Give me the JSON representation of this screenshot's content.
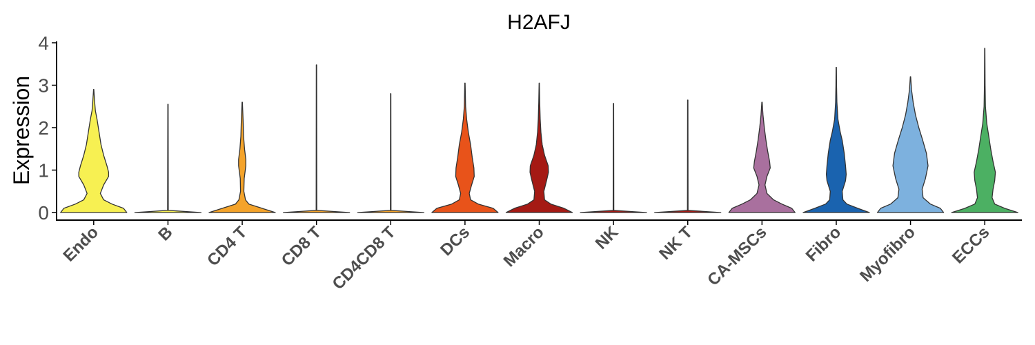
{
  "chart_data": {
    "type": "violin",
    "title": "H2AFJ",
    "xlabel": "",
    "ylabel": "Expression",
    "ylim": [
      -0.2,
      4.1
    ],
    "yticks": [
      0,
      1,
      2,
      3,
      4
    ],
    "grid": false,
    "legend": "none",
    "series": [
      {
        "category": "Endo",
        "color": "#F7F052",
        "max": 2.9,
        "density": [
          [
            0,
            1.0
          ],
          [
            0.1,
            0.9
          ],
          [
            0.2,
            0.55
          ],
          [
            0.3,
            0.3
          ],
          [
            0.45,
            0.2
          ],
          [
            0.65,
            0.3
          ],
          [
            0.85,
            0.45
          ],
          [
            0.95,
            0.45
          ],
          [
            1.1,
            0.4
          ],
          [
            1.35,
            0.3
          ],
          [
            1.6,
            0.22
          ],
          [
            1.9,
            0.16
          ],
          [
            2.2,
            0.1
          ],
          [
            2.4,
            0.05
          ],
          [
            2.6,
            0.03
          ],
          [
            2.9,
            0.005
          ]
        ]
      },
      {
        "category": "B",
        "color": "#F7F052",
        "max": 2.55,
        "density": [
          [
            0,
            1.0
          ],
          [
            0.05,
            0.01
          ],
          [
            2.55,
            0.005
          ]
        ]
      },
      {
        "category": "CD4 T",
        "color": "#F4A32A",
        "max": 2.6,
        "density": [
          [
            0,
            1.0
          ],
          [
            0.1,
            0.6
          ],
          [
            0.2,
            0.2
          ],
          [
            0.3,
            0.1
          ],
          [
            0.5,
            0.05
          ],
          [
            0.8,
            0.06
          ],
          [
            1.1,
            0.11
          ],
          [
            1.25,
            0.11
          ],
          [
            1.5,
            0.07
          ],
          [
            1.8,
            0.04
          ],
          [
            2.1,
            0.03
          ],
          [
            2.6,
            0.005
          ]
        ]
      },
      {
        "category": "CD8 T",
        "color": "#F4A32A",
        "max": 3.48,
        "density": [
          [
            0,
            1.0
          ],
          [
            0.05,
            0.01
          ],
          [
            3.48,
            0.005
          ]
        ]
      },
      {
        "category": "CD4CD8 T",
        "color": "#F4A32A",
        "max": 2.8,
        "density": [
          [
            0,
            1.0
          ],
          [
            0.05,
            0.01
          ],
          [
            2.8,
            0.005
          ]
        ]
      },
      {
        "category": "DCs",
        "color": "#E8531A",
        "max": 3.05,
        "density": [
          [
            0,
            1.0
          ],
          [
            0.1,
            0.85
          ],
          [
            0.2,
            0.4
          ],
          [
            0.3,
            0.17
          ],
          [
            0.45,
            0.13
          ],
          [
            0.65,
            0.2
          ],
          [
            0.85,
            0.28
          ],
          [
            1.05,
            0.27
          ],
          [
            1.3,
            0.22
          ],
          [
            1.6,
            0.17
          ],
          [
            1.9,
            0.1
          ],
          [
            2.2,
            0.05
          ],
          [
            2.5,
            0.02
          ],
          [
            3.05,
            0.005
          ]
        ]
      },
      {
        "category": "Macro",
        "color": "#A51A14",
        "max": 3.05,
        "density": [
          [
            0,
            1.0
          ],
          [
            0.1,
            0.75
          ],
          [
            0.2,
            0.35
          ],
          [
            0.3,
            0.16
          ],
          [
            0.5,
            0.14
          ],
          [
            0.75,
            0.22
          ],
          [
            0.95,
            0.28
          ],
          [
            1.1,
            0.27
          ],
          [
            1.35,
            0.16
          ],
          [
            1.6,
            0.09
          ],
          [
            1.9,
            0.05
          ],
          [
            2.2,
            0.03
          ],
          [
            2.6,
            0.015
          ],
          [
            3.05,
            0.005
          ]
        ]
      },
      {
        "category": "NK",
        "color": "#A51A14",
        "max": 2.57,
        "density": [
          [
            0,
            1.0
          ],
          [
            0.05,
            0.01
          ],
          [
            2.57,
            0.005
          ]
        ]
      },
      {
        "category": "NK T",
        "color": "#A51A14",
        "max": 2.65,
        "density": [
          [
            0,
            1.0
          ],
          [
            0.05,
            0.01
          ],
          [
            2.65,
            0.005
          ]
        ]
      },
      {
        "category": "CA-MSCs",
        "color": "#A9709E",
        "max": 2.6,
        "density": [
          [
            0,
            1.0
          ],
          [
            0.1,
            0.9
          ],
          [
            0.2,
            0.6
          ],
          [
            0.3,
            0.35
          ],
          [
            0.45,
            0.15
          ],
          [
            0.65,
            0.09
          ],
          [
            0.85,
            0.15
          ],
          [
            1.05,
            0.25
          ],
          [
            1.2,
            0.23
          ],
          [
            1.45,
            0.17
          ],
          [
            1.7,
            0.12
          ],
          [
            2.0,
            0.07
          ],
          [
            2.3,
            0.03
          ],
          [
            2.6,
            0.005
          ]
        ]
      },
      {
        "category": "Fibro",
        "color": "#1A63AF",
        "max": 3.42,
        "density": [
          [
            0,
            1.0
          ],
          [
            0.1,
            0.65
          ],
          [
            0.2,
            0.32
          ],
          [
            0.3,
            0.2
          ],
          [
            0.5,
            0.18
          ],
          [
            0.75,
            0.28
          ],
          [
            0.9,
            0.3
          ],
          [
            1.1,
            0.28
          ],
          [
            1.4,
            0.24
          ],
          [
            1.7,
            0.18
          ],
          [
            1.9,
            0.12
          ],
          [
            2.2,
            0.05
          ],
          [
            2.6,
            0.02
          ],
          [
            3.0,
            0.01
          ],
          [
            3.42,
            0.005
          ]
        ]
      },
      {
        "category": "Myofibro",
        "color": "#7DB1DE",
        "max": 3.2,
        "density": [
          [
            0,
            1.0
          ],
          [
            0.1,
            0.9
          ],
          [
            0.2,
            0.6
          ],
          [
            0.35,
            0.38
          ],
          [
            0.55,
            0.35
          ],
          [
            0.8,
            0.45
          ],
          [
            1.1,
            0.53
          ],
          [
            1.4,
            0.48
          ],
          [
            1.7,
            0.37
          ],
          [
            2.0,
            0.25
          ],
          [
            2.3,
            0.15
          ],
          [
            2.6,
            0.08
          ],
          [
            2.9,
            0.03
          ],
          [
            3.2,
            0.005
          ]
        ]
      },
      {
        "category": "ECCs",
        "color": "#4CB063",
        "max": 3.87,
        "density": [
          [
            0,
            1.0
          ],
          [
            0.1,
            0.6
          ],
          [
            0.2,
            0.3
          ],
          [
            0.35,
            0.22
          ],
          [
            0.55,
            0.25
          ],
          [
            0.75,
            0.3
          ],
          [
            0.95,
            0.32
          ],
          [
            1.2,
            0.25
          ],
          [
            1.5,
            0.18
          ],
          [
            1.8,
            0.12
          ],
          [
            2.1,
            0.06
          ],
          [
            2.5,
            0.02
          ],
          [
            3.0,
            0.01
          ],
          [
            3.87,
            0.005
          ]
        ]
      }
    ]
  }
}
